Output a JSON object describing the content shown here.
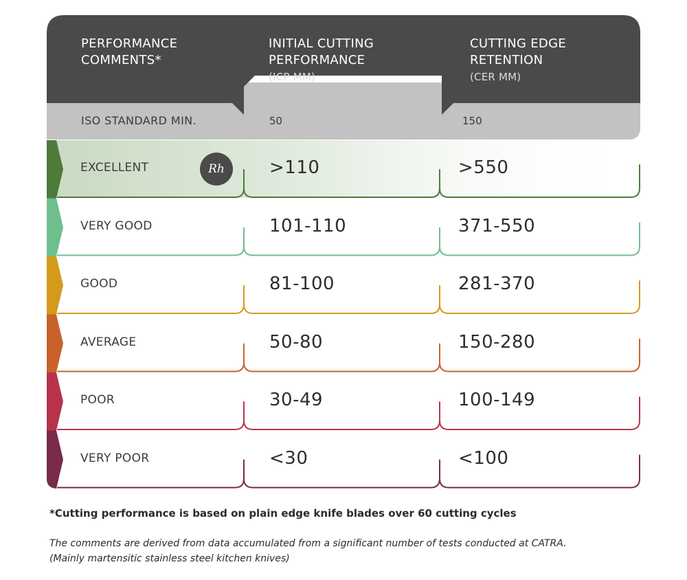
{
  "chart_data": {
    "type": "table",
    "columns": [
      {
        "title": "PERFORMANCE COMMENTS*",
        "subtitle": ""
      },
      {
        "title": "INITIAL CUTTING PERFORMANCE",
        "subtitle": "(ICP MM)"
      },
      {
        "title": "CUTTING EDGE RETENTION",
        "subtitle": "(CER MM)"
      }
    ],
    "iso_row": {
      "label": "ISO STANDARD MIN.",
      "icp": "50",
      "cer": "150"
    },
    "rows": [
      {
        "label": "EXCELLENT",
        "icp": ">110",
        "cer": ">550",
        "color": "#4e7a3a"
      },
      {
        "label": "VERY GOOD",
        "icp": "101-110",
        "cer": "371-550",
        "color": "#6fbf8e"
      },
      {
        "label": "GOOD",
        "icp": "81-100",
        "cer": "281-370",
        "color": "#d49a1c"
      },
      {
        "label": "AVERAGE",
        "icp": "50-80",
        "cer": "150-280",
        "color": "#c9622a"
      },
      {
        "label": "POOR",
        "icp": "30-49",
        "cer": "100-149",
        "color": "#b8334a"
      },
      {
        "label": "VERY POOR",
        "icp": "<30",
        "cer": "<100",
        "color": "#7a2a4a"
      }
    ],
    "highlight": {
      "row": "EXCELLENT",
      "badge_text": "Rh"
    }
  },
  "colors": {
    "header_dark": "#4a4a4c",
    "iso_band": "#c2c2c2",
    "excellent_fill": "#d7e3d2"
  },
  "footnotes": {
    "note": "*Cutting performance is based on plain edge knife blades over 60 cutting cycles",
    "source_line1": "The comments are derived from data accumulated from a significant number of tests conducted at CATRA.",
    "source_line2": "(Mainly martensitic stainless steel kitchen knives)"
  }
}
